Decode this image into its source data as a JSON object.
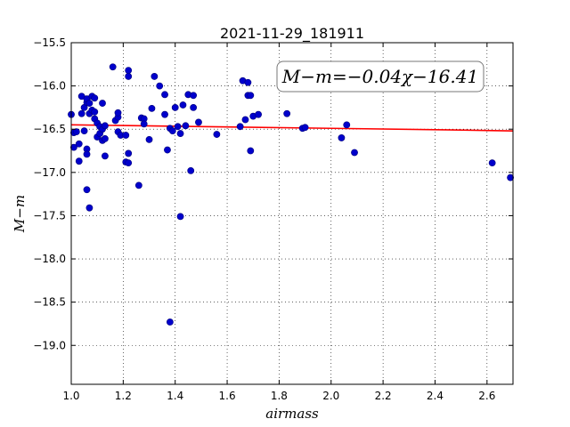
{
  "chart_data": {
    "type": "scatter",
    "title": "2021-11-29_181911",
    "xlabel": "airmass",
    "ylabel": "M−m",
    "annotation": "M−m=−0.04χ−16.41",
    "xlim": [
      1.0,
      2.7
    ],
    "ylim": [
      -15.5,
      -19.45
    ],
    "y_inverted": true,
    "grid": true,
    "x_ticks": [
      "1.0",
      "1.2",
      "1.4",
      "1.6",
      "1.8",
      "2.0",
      "2.2",
      "2.4",
      "2.6"
    ],
    "x_tick_values": [
      1.0,
      1.2,
      1.4,
      1.6,
      1.8,
      2.0,
      2.2,
      2.4,
      2.6
    ],
    "y_ticks": [
      "−15.5",
      "−16.0",
      "−16.5",
      "−17.0",
      "−17.5",
      "−18.0",
      "−18.5",
      "−19.0"
    ],
    "y_tick_values": [
      -15.5,
      -16.0,
      -16.5,
      -17.0,
      -17.5,
      -18.0,
      -18.5,
      -19.0
    ],
    "series": [
      {
        "type": "scatter",
        "color": "#0000cc",
        "points": [
          [
            1.0,
            -16.33
          ],
          [
            1.01,
            -16.54
          ],
          [
            1.01,
            -16.71
          ],
          [
            1.02,
            -16.53
          ],
          [
            1.03,
            -16.67
          ],
          [
            1.03,
            -16.87
          ],
          [
            1.04,
            -16.32
          ],
          [
            1.04,
            -16.12
          ],
          [
            1.05,
            -16.52
          ],
          [
            1.05,
            -16.25
          ],
          [
            1.06,
            -16.73
          ],
          [
            1.06,
            -16.19
          ],
          [
            1.06,
            -16.79
          ],
          [
            1.06,
            -16.15
          ],
          [
            1.06,
            -17.2
          ],
          [
            1.07,
            -17.41
          ],
          [
            1.07,
            -16.32
          ],
          [
            1.07,
            -16.2
          ],
          [
            1.08,
            -16.12
          ],
          [
            1.08,
            -16.28
          ],
          [
            1.09,
            -16.38
          ],
          [
            1.09,
            -16.3
          ],
          [
            1.09,
            -16.14
          ],
          [
            1.1,
            -16.59
          ],
          [
            1.1,
            -16.43
          ],
          [
            1.11,
            -16.55
          ],
          [
            1.11,
            -16.47
          ],
          [
            1.12,
            -16.63
          ],
          [
            1.12,
            -16.5
          ],
          [
            1.12,
            -16.2
          ],
          [
            1.13,
            -16.46
          ],
          [
            1.13,
            -16.61
          ],
          [
            1.13,
            -16.81
          ],
          [
            1.16,
            -15.78
          ],
          [
            1.17,
            -16.4
          ],
          [
            1.18,
            -16.36
          ],
          [
            1.18,
            -16.31
          ],
          [
            1.18,
            -16.53
          ],
          [
            1.19,
            -16.57
          ],
          [
            1.21,
            -16.88
          ],
          [
            1.21,
            -16.57
          ],
          [
            1.22,
            -16.89
          ],
          [
            1.22,
            -16.78
          ],
          [
            1.22,
            -15.89
          ],
          [
            1.22,
            -15.82
          ],
          [
            1.26,
            -17.15
          ],
          [
            1.27,
            -16.37
          ],
          [
            1.28,
            -16.38
          ],
          [
            1.28,
            -16.44
          ],
          [
            1.3,
            -16.62
          ],
          [
            1.31,
            -16.26
          ],
          [
            1.32,
            -15.89
          ],
          [
            1.34,
            -16.0
          ],
          [
            1.36,
            -16.33
          ],
          [
            1.36,
            -16.1
          ],
          [
            1.37,
            -16.74
          ],
          [
            1.38,
            -16.49
          ],
          [
            1.39,
            -16.52
          ],
          [
            1.38,
            -18.73
          ],
          [
            1.4,
            -16.25
          ],
          [
            1.41,
            -16.47
          ],
          [
            1.42,
            -16.55
          ],
          [
            1.42,
            -17.51
          ],
          [
            1.43,
            -16.22
          ],
          [
            1.44,
            -16.46
          ],
          [
            1.45,
            -16.1
          ],
          [
            1.46,
            -16.98
          ],
          [
            1.47,
            -16.25
          ],
          [
            1.47,
            -16.11
          ],
          [
            1.49,
            -16.42
          ],
          [
            1.56,
            -16.56
          ],
          [
            1.65,
            -16.47
          ],
          [
            1.66,
            -15.94
          ],
          [
            1.67,
            -16.39
          ],
          [
            1.68,
            -15.96
          ],
          [
            1.68,
            -16.11
          ],
          [
            1.69,
            -16.11
          ],
          [
            1.69,
            -16.75
          ],
          [
            1.7,
            -16.35
          ],
          [
            1.72,
            -16.33
          ],
          [
            1.83,
            -16.32
          ],
          [
            1.89,
            -16.49
          ],
          [
            1.9,
            -16.48
          ],
          [
            2.04,
            -16.6
          ],
          [
            2.06,
            -16.45
          ],
          [
            2.09,
            -16.77
          ],
          [
            2.62,
            -16.89
          ],
          [
            2.69,
            -17.06
          ]
        ]
      },
      {
        "type": "line",
        "color": "#ff0000",
        "points": [
          [
            1.0,
            -16.45
          ],
          [
            1.5,
            -16.47
          ],
          [
            2.0,
            -16.49
          ],
          [
            2.5,
            -16.51
          ],
          [
            2.7,
            -16.52
          ]
        ]
      }
    ]
  }
}
